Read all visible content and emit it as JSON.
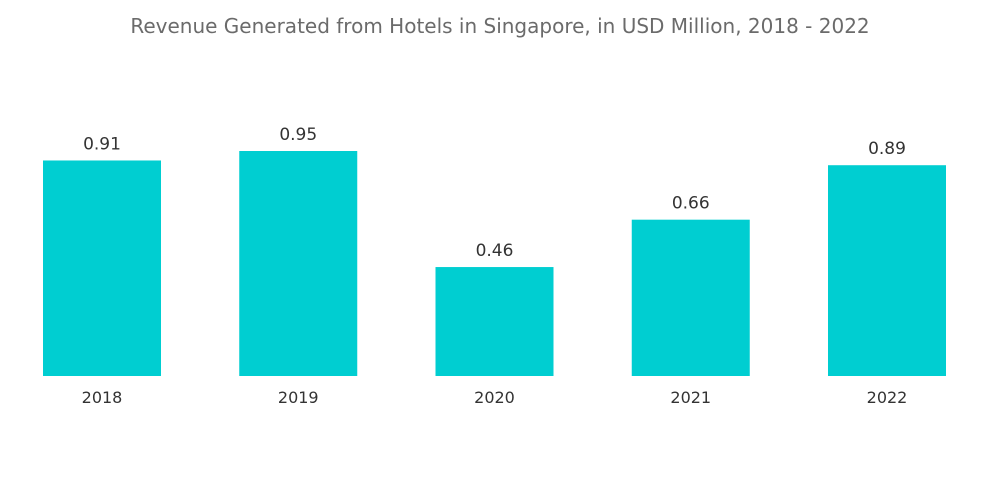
{
  "chart_data": {
    "type": "bar",
    "title": "Revenue Generated from Hotels in Singapore, in USD Million, 2018 - 2022",
    "categories": [
      "2018",
      "2019",
      "2020",
      "2021",
      "2022"
    ],
    "values": [
      0.91,
      0.95,
      0.46,
      0.66,
      0.89
    ],
    "value_labels": [
      "0.91",
      "0.95",
      "0.46",
      "0.66",
      "0.89"
    ],
    "xlabel": "",
    "ylabel": "",
    "ylim": [
      0,
      0.95
    ],
    "grid": false,
    "colors": {
      "bar": "#00CED1"
    }
  }
}
